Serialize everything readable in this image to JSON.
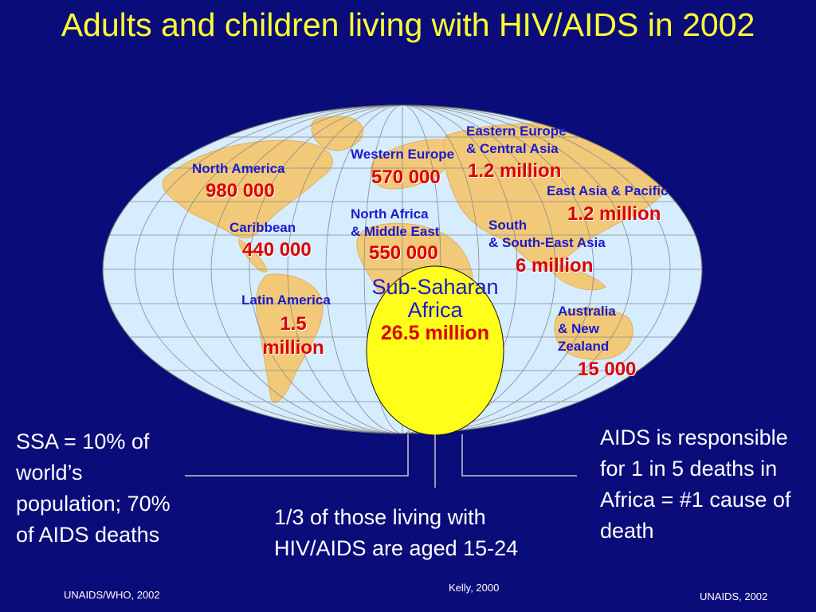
{
  "title": "Adults and children living with HIV/AIDS in 2002",
  "colors": {
    "background": "#0a0c7a",
    "title": "#ffff33",
    "ocean": "#d6ecff",
    "land": "#f2c978",
    "ssa_circle": "#ffff1a",
    "label": "#1a1acc",
    "value": "#d90000"
  },
  "regions": [
    {
      "name": "North America",
      "value": "980 000"
    },
    {
      "name": "Caribbean",
      "value": "440 000"
    },
    {
      "name": "Latin America",
      "value": "1.5 million"
    },
    {
      "name": "Western Europe",
      "value": "570 000"
    },
    {
      "name": "North Africa\n& Middle East",
      "value": "550 000"
    },
    {
      "name": "Eastern Europe\n& Central Asia",
      "value": "1.2 million"
    },
    {
      "name": "East Asia & Pacific",
      "value": "1.2 million"
    },
    {
      "name": "South\n& South-East Asia",
      "value": "6 million"
    },
    {
      "name": "Australia\n& New\nZealand",
      "value": "15 000"
    }
  ],
  "ssa": {
    "name": "Sub-Saharan Africa",
    "value": "26.5 million"
  },
  "notes": {
    "left": "SSA = 10% of world’s population; 70% of AIDS deaths",
    "center": "1/3 of those living with HIV/AIDS are aged 15-24",
    "right": "AIDS is responsible for 1 in 5 deaths in Africa = #1 cause of death"
  },
  "sources": {
    "left": "UNAIDS/WHO, 2002",
    "center": "Kelly, 2000",
    "right": "UNAIDS, 2002"
  }
}
